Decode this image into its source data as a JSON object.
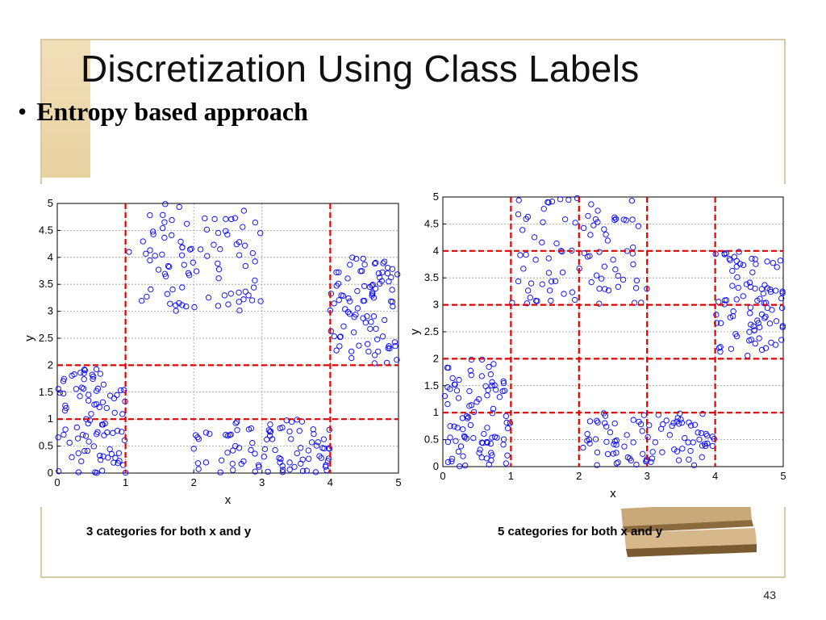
{
  "slide": {
    "title": "Discretization Using Class Labels",
    "bullet": "Entropy based approach",
    "page_number": "43",
    "accent_color": "#e9d2a2",
    "bullet_glyph": "•"
  },
  "captions": {
    "left": "3 categories for both x and y",
    "right": "5 categories for both x and y"
  },
  "chart_data": [
    {
      "type": "scatter",
      "xlabel": "x",
      "ylabel": "y",
      "xlim": [
        0,
        5
      ],
      "ylim": [
        0,
        5
      ],
      "xticks": [
        "0",
        "1",
        "2",
        "3",
        "4",
        "5"
      ],
      "yticks": [
        "0",
        "0.5",
        "1",
        "1.5",
        "2",
        "2.5",
        "3",
        "3.5",
        "4",
        "4.5",
        "5"
      ],
      "grid": true,
      "marker": "open-circle",
      "marker_color": "#0000ff",
      "split_line_color": "#e00000",
      "x_splits": [
        1,
        4
      ],
      "y_splits": [
        1,
        2
      ],
      "clusters": [
        {
          "xrange": [
            0,
            1
          ],
          "yrange": [
            0,
            2
          ],
          "count": 90
        },
        {
          "xrange": [
            1,
            3
          ],
          "yrange": [
            3,
            5
          ],
          "count": 90
        },
        {
          "xrange": [
            2,
            4
          ],
          "yrange": [
            0,
            1
          ],
          "count": 90
        },
        {
          "xrange": [
            4,
            5
          ],
          "yrange": [
            2,
            4
          ],
          "count": 90
        }
      ]
    },
    {
      "type": "scatter",
      "xlabel": "x",
      "ylabel": "y",
      "xlim": [
        0,
        5
      ],
      "ylim": [
        0,
        5
      ],
      "xticks": [
        "0",
        "1",
        "2",
        "3",
        "4",
        "5"
      ],
      "yticks": [
        "0",
        "0.5",
        "1",
        "1.5",
        "2",
        "2.5",
        "3",
        "3.5",
        "4",
        "4.5",
        "5"
      ],
      "grid": true,
      "marker": "open-circle",
      "marker_color": "#0000ff",
      "split_line_color": "#e00000",
      "x_splits": [
        1,
        2,
        3,
        4
      ],
      "y_splits": [
        1,
        2,
        3,
        4
      ],
      "clusters": [
        {
          "xrange": [
            0,
            1
          ],
          "yrange": [
            0,
            2
          ],
          "count": 90
        },
        {
          "xrange": [
            1,
            3
          ],
          "yrange": [
            3,
            5
          ],
          "count": 90
        },
        {
          "xrange": [
            2,
            4
          ],
          "yrange": [
            0,
            1
          ],
          "count": 90
        },
        {
          "xrange": [
            4,
            5
          ],
          "yrange": [
            2,
            4
          ],
          "count": 90
        }
      ]
    }
  ]
}
